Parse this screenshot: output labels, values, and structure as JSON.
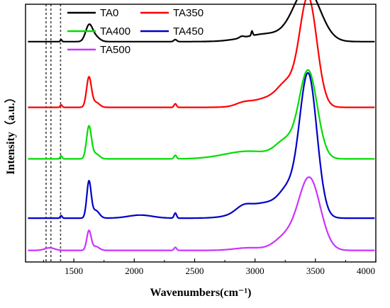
{
  "chart_data": {
    "type": "line",
    "xlabel": "Wavenumbers(cm⁻¹)",
    "ylabel": "Intensity（a.u.）",
    "xlim": [
      1100,
      4000
    ],
    "x_ticks": [
      "1500",
      "2000",
      "2500",
      "3000",
      "3500",
      "4000"
    ],
    "y_ticks_shown": false,
    "legend_position": "top-left, two columns",
    "reference_lines_x": [
      1270,
      1310,
      1390
    ],
    "series": [
      {
        "name": "TA0",
        "color": "#000000",
        "baseline": 0.855,
        "peaks": [
          [
            1625,
            0.06,
            28
          ],
          [
            1675,
            0.02,
            35
          ],
          [
            1395,
            0.008,
            6
          ],
          [
            2340,
            0.008,
            12
          ],
          [
            2890,
            0.006,
            18
          ],
          [
            2975,
            0.018,
            6
          ],
          [
            3100,
            0.03,
            180
          ],
          [
            3430,
            0.2,
            110
          ]
        ]
      },
      {
        "name": "TA350",
        "color": "#ff0000",
        "baseline": 0.6,
        "peaks": [
          [
            1625,
            0.115,
            20
          ],
          [
            1680,
            0.02,
            30
          ],
          [
            1395,
            0.01,
            8
          ],
          [
            2340,
            0.014,
            10
          ],
          [
            2900,
            0.01,
            60
          ],
          [
            3150,
            0.04,
            160
          ],
          [
            3260,
            0.06,
            70
          ],
          [
            3440,
            0.42,
            72
          ]
        ]
      },
      {
        "name": "TA400",
        "color": "#00dd00",
        "baseline": 0.4,
        "peaks": [
          [
            1625,
            0.125,
            20
          ],
          [
            1680,
            0.02,
            30
          ],
          [
            1395,
            0.012,
            8
          ],
          [
            2340,
            0.014,
            10
          ],
          [
            2950,
            0.03,
            200
          ],
          [
            3250,
            0.06,
            80
          ],
          [
            3440,
            0.34,
            75
          ]
        ]
      },
      {
        "name": "TA450",
        "color": "#0000cc",
        "baseline": 0.17,
        "peaks": [
          [
            1625,
            0.14,
            18
          ],
          [
            1680,
            0.03,
            30
          ],
          [
            1395,
            0.01,
            8
          ],
          [
            2050,
            0.012,
            100
          ],
          [
            2340,
            0.02,
            10
          ],
          [
            2900,
            0.02,
            60
          ],
          [
            3100,
            0.06,
            180
          ],
          [
            3270,
            0.07,
            70
          ],
          [
            3440,
            0.55,
            72
          ]
        ]
      },
      {
        "name": "TA500",
        "color": "#cc33ff",
        "baseline": 0.045,
        "peaks": [
          [
            1625,
            0.075,
            18
          ],
          [
            1680,
            0.015,
            30
          ],
          [
            1300,
            0.01,
            40
          ],
          [
            2340,
            0.012,
            10
          ],
          [
            2950,
            0.01,
            120
          ],
          [
            3250,
            0.05,
            90
          ],
          [
            3450,
            0.28,
            90
          ]
        ]
      }
    ]
  }
}
